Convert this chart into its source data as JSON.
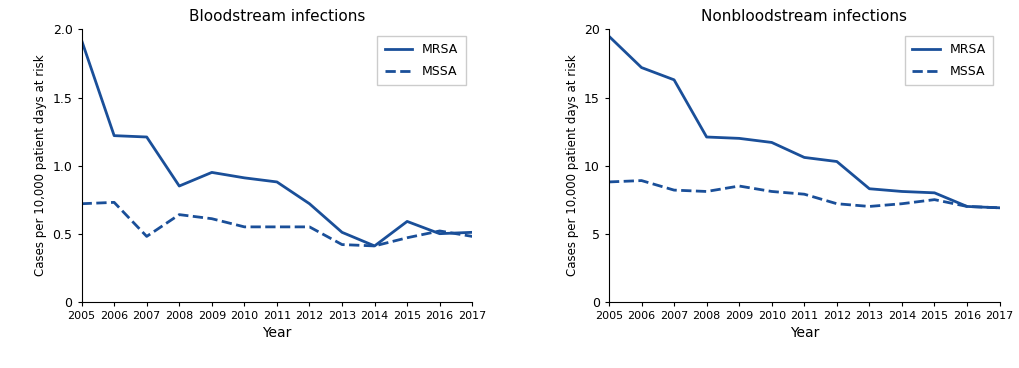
{
  "years": [
    2005,
    2006,
    2007,
    2008,
    2009,
    2010,
    2011,
    2012,
    2013,
    2014,
    2015,
    2016,
    2017
  ],
  "bloodstream": {
    "mrsa": [
      1.92,
      1.22,
      1.21,
      0.85,
      0.95,
      0.91,
      0.88,
      0.72,
      0.51,
      0.41,
      0.59,
      0.5,
      0.51
    ],
    "mssa": [
      0.72,
      0.73,
      0.48,
      0.64,
      0.61,
      0.55,
      0.55,
      0.55,
      0.42,
      0.41,
      0.47,
      0.52,
      0.48
    ]
  },
  "nonbloodstream": {
    "mrsa": [
      19.5,
      17.2,
      16.3,
      12.1,
      12.0,
      11.7,
      10.6,
      10.3,
      8.3,
      8.1,
      8.0,
      7.0,
      6.9
    ],
    "mssa": [
      8.8,
      8.9,
      8.2,
      8.1,
      8.5,
      8.1,
      7.9,
      7.2,
      7.0,
      7.2,
      7.5,
      7.0,
      6.9
    ]
  },
  "line_color": "#1a4f99",
  "title_bloodstream": "Bloodstream infections",
  "title_nonbloodstream": "Nonbloodstream infections",
  "ylabel": "Cases per 10,000 patient days at risk",
  "xlabel": "Year",
  "legend_solid": "MRSA",
  "legend_dashed": "MSSA",
  "ylim_bloodstream": [
    0,
    2.0
  ],
  "ylim_nonbloodstream": [
    0,
    20
  ],
  "yticks_bloodstream": [
    0,
    0.5,
    1.0,
    1.5,
    2.0
  ],
  "yticks_nonbloodstream": [
    0,
    5,
    10,
    15,
    20
  ],
  "ytick_labels_bloodstream": [
    "0",
    "0.5",
    "1.0",
    "1.5",
    "2.0"
  ],
  "ytick_labels_nonbloodstream": [
    "0",
    "5",
    "10",
    "15",
    "20"
  ]
}
